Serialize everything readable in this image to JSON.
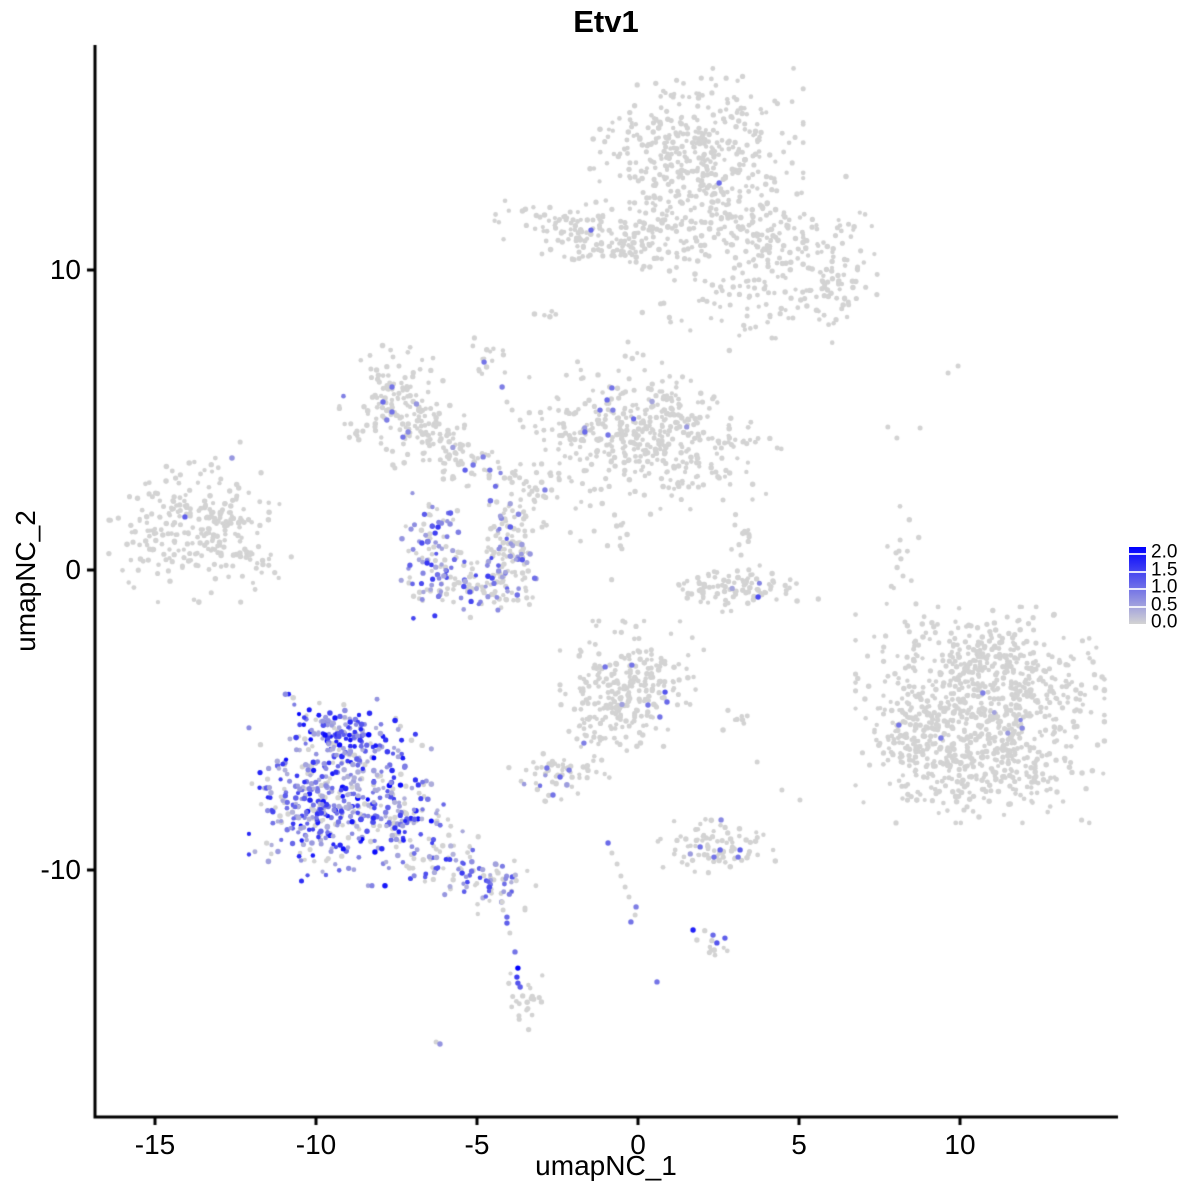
{
  "title": "Etv1",
  "chart_data": {
    "type": "scatter",
    "subtype": "umap-feature-plot",
    "title": "Etv1",
    "xlabel": "umapNC_1",
    "ylabel": "umapNC_2",
    "x_tick_labels": [
      "-15",
      "-10",
      "-5",
      "0",
      "5",
      "10"
    ],
    "x_tick_values": [
      -15,
      -10,
      -5,
      0,
      5,
      10
    ],
    "y_tick_labels": [
      "10",
      "0",
      "-10"
    ],
    "y_tick_values": [
      10,
      0,
      -10
    ],
    "xlim": [
      -16.9,
      14.9
    ],
    "ylim": [
      -18.2,
      17.5
    ],
    "grid": false,
    "legend": {
      "position": "right",
      "labels": [
        "2.0",
        "1.5",
        "1.0",
        "0.5",
        "0.0"
      ],
      "values": [
        2.0,
        1.5,
        1.0,
        0.5,
        0.0
      ],
      "vmin": 0.0,
      "vmax": 2.0,
      "low_color": "#d3d3d3",
      "high_color": "#0000ff"
    },
    "point_color_low": "#d3d3d3",
    "point_color_high": "#0000ff",
    "clusters": [
      {
        "name": "top-main",
        "cx": 1.77,
        "cy": 13.67,
        "sx": 1.4,
        "sy": 1.27,
        "n": 450,
        "frac": 0.002
      },
      {
        "name": "top-left-wing",
        "cx": -1.96,
        "cy": 11.27,
        "sx": 1.05,
        "sy": 0.5,
        "n": 110,
        "rot": -8
      },
      {
        "name": "top-wing-bridge",
        "cx": -0.4,
        "cy": 10.73,
        "sx": 0.62,
        "sy": 0.22,
        "n": 25
      },
      {
        "name": "top-right-arm",
        "cx": 4.25,
        "cy": 10.83,
        "sx": 1.24,
        "sy": 0.8,
        "n": 180,
        "rot": -20,
        "frac": 0.002
      },
      {
        "name": "top-right-tip",
        "cx": 5.96,
        "cy": 9.33,
        "sx": 0.62,
        "sy": 0.73,
        "n": 50
      },
      {
        "name": "top-under-scatter",
        "cx": 1.93,
        "cy": 9.33,
        "sx": 1.15,
        "sy": 0.85,
        "n": 40
      },
      {
        "name": "top-under-scatter2",
        "cx": 3.63,
        "cy": 8.5,
        "sx": 0.8,
        "sy": 0.5,
        "n": 18
      },
      {
        "name": "top-neck",
        "cx": 0.53,
        "cy": 11.17,
        "sx": 0.5,
        "sy": 0.6,
        "n": 40
      },
      {
        "name": "top-right-sparse",
        "cx": 6.58,
        "cy": 10.67,
        "sx": 0.5,
        "sy": 1.15,
        "n": 12
      },
      {
        "name": "far-left",
        "cx": -13.6,
        "cy": 1.33,
        "sx": 1.18,
        "sy": 1.0,
        "n": 260,
        "frac": 0.002
      },
      {
        "name": "far-left-scatter",
        "cx": -12.2,
        "cy": 1.5,
        "sx": 0.6,
        "sy": 1.45,
        "n": 20
      },
      {
        "name": "mid-topleft-blob",
        "cx": -7.33,
        "cy": 5.4,
        "sx": 0.81,
        "sy": 0.93,
        "n": 150,
        "frac": 0.01
      },
      {
        "name": "mid-topleft-knob",
        "cx": -6.24,
        "cy": 4.83,
        "sx": 0.35,
        "sy": 0.4,
        "n": 25
      },
      {
        "name": "mid-chain",
        "cx": -5.22,
        "cy": 3.6,
        "sx": 0.87,
        "sy": 0.4,
        "n": 70,
        "rot": -15,
        "frac": 0.04
      },
      {
        "name": "mid-strand-blob",
        "cx": -4.69,
        "cy": 7.17,
        "sx": 0.3,
        "sy": 0.35,
        "n": 15
      },
      {
        "name": "mid-right-mass",
        "cx": -0.4,
        "cy": 4.83,
        "sx": 1.24,
        "sy": 1.0,
        "n": 260,
        "frac": 0.01
      },
      {
        "name": "mid-right-ext",
        "cx": 1.77,
        "cy": 4.0,
        "sx": 1.09,
        "sy": 0.93,
        "n": 160,
        "rot": -25,
        "frac": 0.003
      },
      {
        "name": "u-left",
        "cx": -6.4,
        "cy": 0.67,
        "sx": 0.45,
        "sy": 0.95,
        "n": 80,
        "frac": 0.5,
        "vmin": 0.4,
        "vmax": 1.5
      },
      {
        "name": "u-bottom",
        "cx": -5.37,
        "cy": -0.5,
        "sx": 0.93,
        "sy": 0.45,
        "n": 95,
        "frac": 0.35,
        "vmin": 0.4,
        "vmax": 1.4
      },
      {
        "name": "u-right",
        "cx": -4.13,
        "cy": 0.33,
        "sx": 0.45,
        "sy": 0.85,
        "n": 80,
        "frac": 0.3,
        "vmin": 0.4,
        "vmax": 1.3
      },
      {
        "name": "u-tip",
        "cx": -3.82,
        "cy": 1.27,
        "sx": 0.35,
        "sy": 0.45,
        "n": 30,
        "frac": 0.3,
        "vmin": 0.4,
        "vmax": 1.2
      },
      {
        "name": "mid-sparse-a",
        "cx": -3.66,
        "cy": 2.17,
        "sx": 0.5,
        "sy": 0.5,
        "n": 15
      },
      {
        "name": "mid-sparse-b",
        "cx": -2.58,
        "cy": 3.0,
        "sx": 0.85,
        "sy": 0.85,
        "n": 30
      },
      {
        "name": "mid-sparse-c",
        "cx": -0.71,
        "cy": 1.5,
        "sx": 0.9,
        "sy": 1.1,
        "n": 18
      },
      {
        "name": "arc",
        "cx": 3.32,
        "cy": -0.67,
        "sx": 0.95,
        "sy": 0.3,
        "n": 85,
        "frac": 0.01
      },
      {
        "name": "arc-tip",
        "cx": 2.15,
        "cy": -0.3,
        "sx": 0.25,
        "sy": 0.25,
        "n": 10
      },
      {
        "name": "above-arc",
        "cx": 3.35,
        "cy": 0.67,
        "sx": 0.22,
        "sy": 0.5,
        "n": 16
      },
      {
        "name": "right-strand",
        "cx": 8.2,
        "cy": 0.23,
        "sx": 0.25,
        "sy": 0.9,
        "n": 14
      },
      {
        "name": "right-big-core",
        "cx": 10.62,
        "cy": -4.83,
        "sx": 1.61,
        "sy": 1.5,
        "n": 750,
        "frac": 0.003,
        "vmax": 0.8
      },
      {
        "name": "right-big-left",
        "cx": 8.39,
        "cy": -5.27,
        "sx": 0.5,
        "sy": 1.0,
        "n": 80
      },
      {
        "name": "right-big-top",
        "cx": 11.2,
        "cy": -3.0,
        "sx": 1.1,
        "sy": 0.5,
        "n": 110
      },
      {
        "name": "right-big-bottom",
        "cx": 10.5,
        "cy": -6.8,
        "sx": 1.2,
        "sy": 0.5,
        "n": 110
      },
      {
        "name": "bottom-center",
        "cx": -0.19,
        "cy": -3.93,
        "sx": 0.93,
        "sy": 0.93,
        "n": 260,
        "frac": 0.012
      },
      {
        "name": "bottom-center-trail",
        "cx": -1.49,
        "cy": -5.27,
        "sx": 0.3,
        "sy": 0.65,
        "n": 18
      },
      {
        "name": "bc-right-sparse",
        "cx": 3.07,
        "cy": -4.97,
        "sx": 0.5,
        "sy": 0.25,
        "n": 8
      },
      {
        "name": "small-left",
        "cx": -2.45,
        "cy": -6.8,
        "sx": 0.65,
        "sy": 0.38,
        "n": 55,
        "frac": 0.05
      },
      {
        "name": "right-mid-cluster",
        "cx": 2.42,
        "cy": -9.17,
        "sx": 0.8,
        "sy": 0.42,
        "n": 85,
        "frac": 0.02
      },
      {
        "name": "group-gray-low",
        "cx": 2.3,
        "cy": -12.55,
        "sx": 0.28,
        "sy": 0.22,
        "n": 10
      },
      {
        "name": "bottomleft-core",
        "cx": -9.25,
        "cy": -7.33,
        "sx": 1.18,
        "sy": 1.33,
        "n": 420,
        "frac": 0.8,
        "vmin": 0.3,
        "vmax": 2.0,
        "bias": 1.8
      },
      {
        "name": "bottomleft-top",
        "cx": -9.25,
        "cy": -5.33,
        "sx": 0.78,
        "sy": 0.35,
        "n": 70,
        "frac": 0.85,
        "vmin": 0.4,
        "vmax": 2.0,
        "bias": 1.6
      },
      {
        "name": "bottomleft-left",
        "cx": -10.5,
        "cy": -8.33,
        "sx": 0.43,
        "sy": 0.85,
        "n": 60,
        "frac": 0.8,
        "vmin": 0.3,
        "vmax": 1.8,
        "bias": 1.8
      },
      {
        "name": "bottomleft-right",
        "cx": -7.39,
        "cy": -8.17,
        "sx": 0.62,
        "sy": 0.72,
        "n": 80,
        "frac": 0.7,
        "vmin": 0.3,
        "vmax": 1.8,
        "bias": 2
      },
      {
        "name": "bottomleft-tail1",
        "cx": -5.99,
        "cy": -9.67,
        "sx": 0.7,
        "sy": 0.5,
        "n": 70,
        "frac": 0.55,
        "vmin": 0.3,
        "vmax": 1.5,
        "bias": 2,
        "rot": -25
      },
      {
        "name": "bottomleft-tail2",
        "cx": -4.44,
        "cy": -10.4,
        "sx": 0.5,
        "sy": 0.38,
        "n": 45,
        "frac": 0.5,
        "vmin": 0.3,
        "vmax": 1.4,
        "rot": -30
      },
      {
        "name": "below-tail-blob",
        "cx": -3.6,
        "cy": -14.43,
        "sx": 0.3,
        "sy": 0.5,
        "n": 22
      },
      {
        "name": "tiny-topmid",
        "cx": -2.83,
        "cy": 8.67,
        "sx": 0.28,
        "sy": 0.22,
        "n": 5
      }
    ],
    "points": [
      [
        2.52,
        12.9,
        1.0
      ],
      [
        -1.46,
        11.33,
        1.0
      ],
      [
        -14.07,
        1.77,
        1.1
      ],
      [
        -7.64,
        6.1,
        0.9
      ],
      [
        -7.92,
        5.6,
        1.0
      ],
      [
        -7.64,
        5.27,
        0.9
      ],
      [
        -7.8,
        5.0,
        0.8
      ],
      [
        -7.3,
        4.43,
        0.9
      ],
      [
        -7.14,
        4.6,
        0.7
      ],
      [
        -5.12,
        3.5,
        0.9
      ],
      [
        -5.37,
        3.33,
        1.1
      ],
      [
        -4.81,
        3.77,
        0.8
      ],
      [
        -4.6,
        3.33,
        0.9
      ],
      [
        -4.78,
        6.93,
        0.9
      ],
      [
        -4.22,
        6.1,
        0.8
      ],
      [
        -4.07,
        5.6,
        0
      ],
      [
        -3.91,
        5.33,
        0
      ],
      [
        -3.66,
        5.0,
        0
      ],
      [
        -3.57,
        4.77,
        0
      ],
      [
        -0.81,
        6.07,
        0.9
      ],
      [
        -0.96,
        5.67,
        1.0
      ],
      [
        -1.18,
        5.33,
        0.9
      ],
      [
        -0.78,
        5.33,
        0.8
      ],
      [
        -1.65,
        4.6,
        1.0
      ],
      [
        -0.93,
        4.5,
        0.9
      ],
      [
        -6.21,
        1.43,
        1.5
      ],
      [
        -6.3,
        1.23,
        1.4
      ],
      [
        -6.71,
        0.9,
        1.3
      ],
      [
        -6.55,
        0.23,
        1.5
      ],
      [
        -5.22,
        -0.73,
        1.2
      ],
      [
        -4.53,
        -0.27,
        1.3
      ],
      [
        -2.89,
        2.67,
        0.8
      ],
      [
        3.73,
        -0.9,
        1.3
      ],
      [
        2.64,
        2.33,
        0
      ],
      [
        3.01,
        1.5,
        0
      ],
      [
        7.76,
        4.77,
        0
      ],
      [
        8.04,
        4.4,
        0
      ],
      [
        9.63,
        6.57,
        0
      ],
      [
        9.94,
        6.8,
        0
      ],
      [
        8.76,
        4.73,
        0
      ],
      [
        8.29,
        -1.73,
        0
      ],
      [
        8.14,
        1.0,
        0
      ],
      [
        8.23,
        -0.2,
        0
      ],
      [
        10.71,
        -4.1,
        0.8
      ],
      [
        8.1,
        -5.17,
        0.9
      ],
      [
        9.41,
        -5.6,
        0.8
      ],
      [
        11.93,
        -5.27,
        0.7
      ],
      [
        -1.02,
        -3.23,
        0.9
      ],
      [
        -0.19,
        -3.17,
        0.9
      ],
      [
        0.84,
        -4.07,
        1.2
      ],
      [
        0.31,
        -4.5,
        0.9
      ],
      [
        0.9,
        -4.4,
        1.0
      ],
      [
        0.68,
        -4.9,
        0.9
      ],
      [
        -1.68,
        -5.77,
        0.8
      ],
      [
        -2.83,
        -6.6,
        0.9
      ],
      [
        -2.42,
        -6.9,
        1.0
      ],
      [
        -2.14,
        -6.67,
        0.8
      ],
      [
        -2.64,
        -7.5,
        0.9
      ],
      [
        -0.93,
        -9.1,
        1.0
      ],
      [
        -0.81,
        -9.43,
        0
      ],
      [
        -0.65,
        -9.8,
        0
      ],
      [
        -0.53,
        -10.2,
        0
      ],
      [
        -0.4,
        -10.57,
        0
      ],
      [
        -0.28,
        -10.9,
        0
      ],
      [
        -0.06,
        -11.23,
        0.8
      ],
      [
        -0.09,
        -11.5,
        0
      ],
      [
        -0.22,
        -11.73,
        0.9
      ],
      [
        1.93,
        -9.23,
        0.9
      ],
      [
        2.55,
        -9.33,
        1.0
      ],
      [
        2.36,
        -9.57,
        0.9
      ],
      [
        3.17,
        -9.33,
        1.1
      ],
      [
        3.11,
        -9.57,
        0.9
      ],
      [
        2.58,
        -8.33,
        0.7
      ],
      [
        1.71,
        -12.0,
        1.7
      ],
      [
        2.33,
        -12.17,
        1.0
      ],
      [
        2.7,
        -12.27,
        1.1
      ],
      [
        2.45,
        -12.43,
        1.2
      ],
      [
        0.59,
        -13.73,
        0.9
      ],
      [
        -3.51,
        -11.27,
        0
      ],
      [
        -9.41,
        -4.93,
        1.8
      ],
      [
        -8.94,
        -5.07,
        1.6
      ],
      [
        -9.72,
        -5.5,
        1.9
      ],
      [
        -8.63,
        -5.67,
        1.5
      ],
      [
        -10.19,
        -7.67,
        1.7
      ],
      [
        -8.17,
        -9.4,
        1.9
      ],
      [
        -9.25,
        -9.17,
        1.6
      ],
      [
        -7.55,
        -8.6,
        1.5
      ],
      [
        -4.22,
        -11.07,
        0
      ],
      [
        -4.19,
        -11.33,
        0
      ],
      [
        -4.07,
        -11.57,
        1.0
      ],
      [
        -4.07,
        -11.77,
        1.1
      ],
      [
        -3.98,
        -12.1,
        0
      ],
      [
        -3.51,
        -11.33,
        0
      ],
      [
        -3.82,
        -12.73,
        0.9
      ],
      [
        -3.73,
        -13.27,
        2.0
      ],
      [
        -3.76,
        -13.57,
        1.4
      ],
      [
        -3.73,
        -13.77,
        1.2
      ],
      [
        -3.66,
        -13.9,
        1.1
      ],
      [
        -6.27,
        -15.73,
        0
      ],
      [
        -6.15,
        -15.8,
        0.6
      ],
      [
        4.81,
        8.4,
        0
      ],
      [
        4.16,
        7.73,
        0
      ],
      [
        -0.31,
        7.6,
        0
      ],
      [
        0.16,
        7.17,
        0
      ],
      [
        3.7,
        -6.4,
        0
      ],
      [
        4.47,
        -7.33,
        0
      ],
      [
        5.03,
        -7.67,
        0
      ]
    ]
  }
}
